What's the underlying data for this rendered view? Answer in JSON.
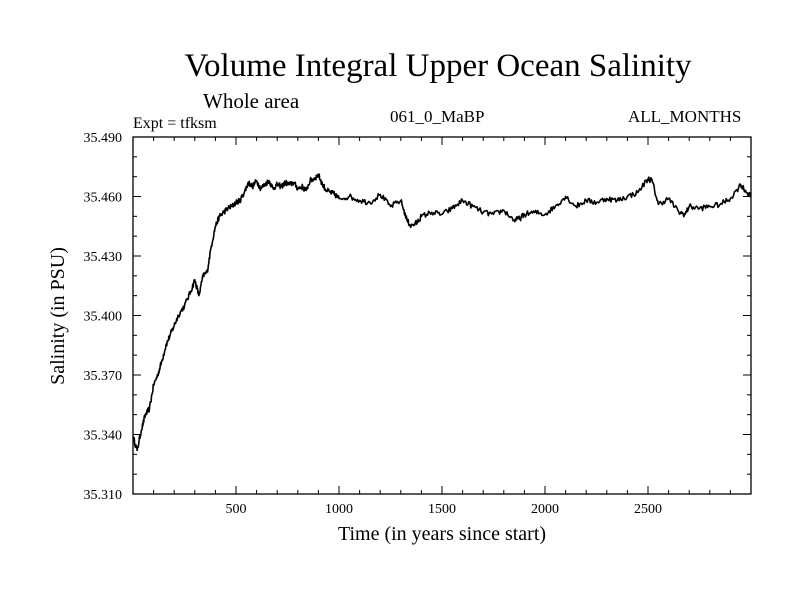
{
  "header": {
    "title": "Volume Integral Upper Ocean Salinity",
    "subtitle": "Whole area",
    "left_label": "Expt = tfksm",
    "center_label": "061_0_MaBP",
    "right_label": "ALL_MONTHS"
  },
  "chart_data": {
    "type": "line",
    "title": "Volume Integral Upper Ocean Salinity",
    "subtitle": "Whole area",
    "xlabel": "Time (in years since start)",
    "ylabel": "Salinity (in PSU)",
    "xlim": [
      0,
      3000
    ],
    "ylim": [
      35.31,
      35.49
    ],
    "xticks": [
      500,
      1000,
      1500,
      2000,
      2500
    ],
    "xtick_labels": [
      "500",
      "1000",
      "1500",
      "2000",
      "2500"
    ],
    "yticks": [
      35.31,
      35.34,
      35.37,
      35.4,
      35.43,
      35.46,
      35.49
    ],
    "ytick_labels": [
      "35.310",
      "35.340",
      "35.370",
      "35.400",
      "35.430",
      "35.460",
      "35.490"
    ],
    "grid": false,
    "line_color": "#000000",
    "series": [
      {
        "name": "salinity",
        "x": [
          0,
          20,
          40,
          60,
          80,
          100,
          120,
          140,
          160,
          180,
          200,
          220,
          250,
          280,
          300,
          320,
          340,
          360,
          380,
          400,
          420,
          440,
          460,
          480,
          500,
          520,
          540,
          560,
          580,
          600,
          620,
          640,
          660,
          680,
          700,
          720,
          740,
          760,
          780,
          800,
          820,
          840,
          860,
          880,
          900,
          920,
          940,
          960,
          980,
          1000,
          1050,
          1100,
          1150,
          1200,
          1250,
          1300,
          1330,
          1350,
          1380,
          1400,
          1450,
          1500,
          1550,
          1600,
          1650,
          1700,
          1750,
          1800,
          1850,
          1880,
          1900,
          1950,
          2000,
          2050,
          2100,
          2150,
          2200,
          2250,
          2300,
          2350,
          2400,
          2450,
          2500,
          2520,
          2550,
          2600,
          2650,
          2680,
          2700,
          2750,
          2800,
          2850,
          2900,
          2950,
          2980,
          3000
        ],
        "values": [
          35.339,
          35.332,
          35.342,
          35.35,
          35.353,
          35.365,
          35.37,
          35.377,
          35.385,
          35.39,
          35.395,
          35.4,
          35.405,
          35.412,
          35.418,
          35.41,
          35.42,
          35.422,
          35.435,
          35.445,
          35.45,
          35.452,
          35.454,
          35.455,
          35.457,
          35.458,
          35.462,
          35.467,
          35.465,
          35.468,
          35.464,
          35.466,
          35.468,
          35.464,
          35.466,
          35.465,
          35.467,
          35.466,
          35.467,
          35.464,
          35.465,
          35.463,
          35.468,
          35.469,
          35.471,
          35.466,
          35.463,
          35.462,
          35.461,
          35.459,
          35.46,
          35.458,
          35.457,
          35.461,
          35.455,
          35.458,
          35.448,
          35.445,
          35.447,
          35.45,
          35.452,
          35.451,
          35.454,
          35.458,
          35.455,
          35.452,
          35.451,
          35.453,
          35.448,
          35.449,
          35.451,
          35.452,
          35.451,
          35.455,
          35.46,
          35.455,
          35.458,
          35.457,
          35.459,
          35.458,
          35.46,
          35.462,
          35.469,
          35.468,
          35.456,
          35.459,
          35.452,
          35.451,
          35.455,
          35.454,
          35.455,
          35.456,
          35.459,
          35.466,
          35.462,
          35.46
        ]
      }
    ]
  }
}
